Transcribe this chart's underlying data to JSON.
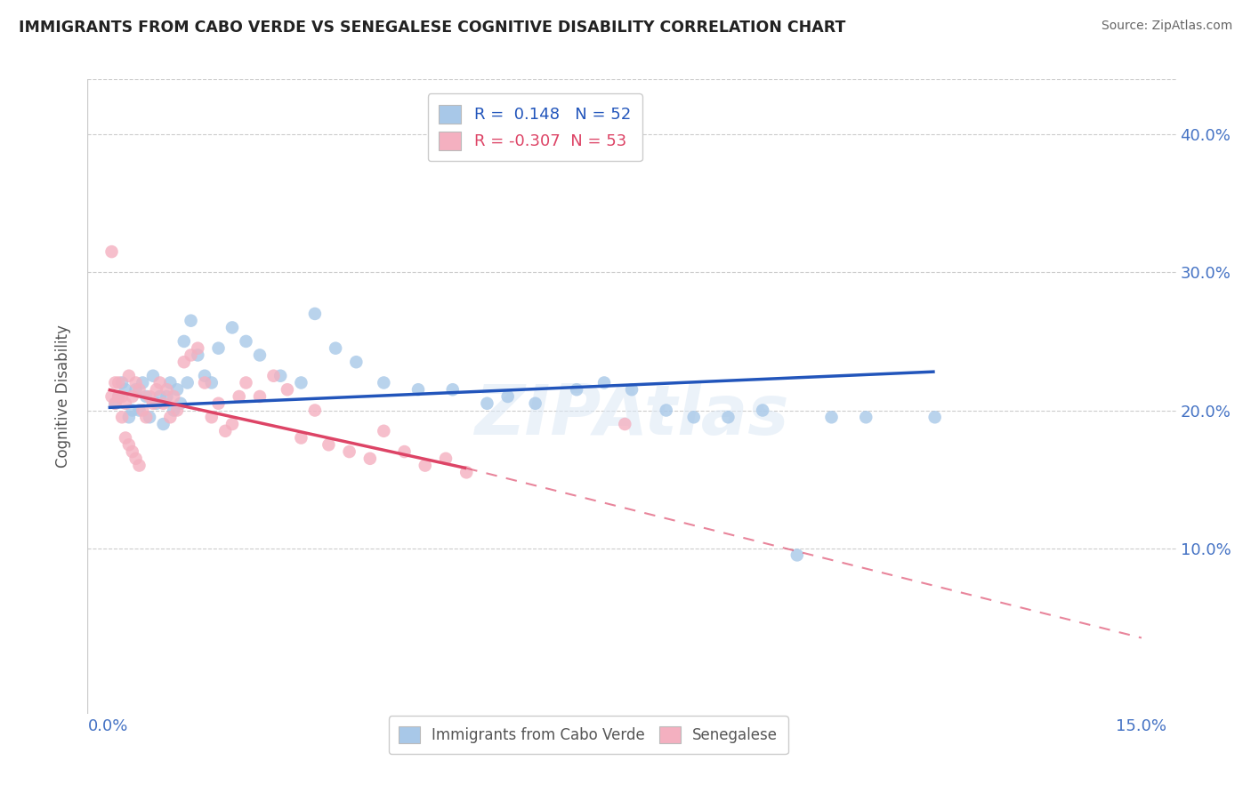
{
  "title": "IMMIGRANTS FROM CABO VERDE VS SENEGALESE COGNITIVE DISABILITY CORRELATION CHART",
  "source": "Source: ZipAtlas.com",
  "ylabel": "Cognitive Disability",
  "xlim": [
    -0.3,
    15.5
  ],
  "ylim": [
    -2.0,
    44.0
  ],
  "yticks": [
    10.0,
    20.0,
    30.0,
    40.0
  ],
  "ytick_labels": [
    "10.0%",
    "20.0%",
    "30.0%",
    "40.0%"
  ],
  "legend_label_blue": "Immigrants from Cabo Verde",
  "legend_label_pink": "Senegalese",
  "R_blue": 0.148,
  "N_blue": 52,
  "R_pink": -0.307,
  "N_pink": 53,
  "blue_color": "#a8c8e8",
  "pink_color": "#f4b0c0",
  "blue_line_color": "#2255bb",
  "pink_line_color": "#dd4466",
  "watermark": "ZIPAtlas",
  "cabo_verde_x": [
    0.1,
    0.15,
    0.2,
    0.25,
    0.3,
    0.35,
    0.4,
    0.45,
    0.5,
    0.55,
    0.6,
    0.65,
    0.7,
    0.75,
    0.8,
    0.85,
    0.9,
    0.95,
    1.0,
    1.05,
    1.1,
    1.15,
    1.2,
    1.3,
    1.4,
    1.5,
    1.6,
    1.8,
    2.0,
    2.2,
    2.5,
    2.8,
    3.0,
    3.3,
    3.6,
    4.0,
    4.5,
    5.0,
    5.5,
    5.8,
    6.2,
    6.8,
    7.2,
    7.6,
    8.1,
    8.5,
    9.0,
    9.5,
    10.0,
    10.5,
    11.0,
    12.0
  ],
  "cabo_verde_y": [
    20.5,
    21.0,
    22.0,
    21.5,
    19.5,
    20.0,
    21.5,
    20.0,
    22.0,
    21.0,
    19.5,
    22.5,
    20.5,
    21.0,
    19.0,
    21.0,
    22.0,
    20.0,
    21.5,
    20.5,
    25.0,
    22.0,
    26.5,
    24.0,
    22.5,
    22.0,
    24.5,
    26.0,
    25.0,
    24.0,
    22.5,
    22.0,
    27.0,
    24.5,
    23.5,
    22.0,
    21.5,
    21.5,
    20.5,
    21.0,
    20.5,
    21.5,
    22.0,
    21.5,
    20.0,
    19.5,
    19.5,
    20.0,
    9.5,
    19.5,
    19.5,
    19.5
  ],
  "senegalese_x": [
    0.05,
    0.1,
    0.15,
    0.2,
    0.25,
    0.3,
    0.35,
    0.4,
    0.45,
    0.5,
    0.55,
    0.6,
    0.65,
    0.7,
    0.75,
    0.8,
    0.85,
    0.9,
    0.95,
    1.0,
    1.1,
    1.2,
    1.3,
    1.4,
    1.5,
    1.6,
    1.7,
    1.8,
    1.9,
    2.0,
    2.2,
    2.4,
    2.6,
    2.8,
    3.0,
    3.2,
    3.5,
    3.8,
    4.0,
    4.3,
    4.6,
    4.9,
    5.2,
    0.05,
    0.1,
    0.15,
    0.2,
    0.25,
    0.3,
    0.35,
    0.4,
    0.45,
    7.5
  ],
  "senegalese_y": [
    21.0,
    20.5,
    22.0,
    21.0,
    20.5,
    22.5,
    21.0,
    22.0,
    21.5,
    20.0,
    19.5,
    21.0,
    20.5,
    21.5,
    22.0,
    20.5,
    21.5,
    19.5,
    21.0,
    20.0,
    23.5,
    24.0,
    24.5,
    22.0,
    19.5,
    20.5,
    18.5,
    19.0,
    21.0,
    22.0,
    21.0,
    22.5,
    21.5,
    18.0,
    20.0,
    17.5,
    17.0,
    16.5,
    18.5,
    17.0,
    16.0,
    16.5,
    15.5,
    31.5,
    22.0,
    21.0,
    19.5,
    18.0,
    17.5,
    17.0,
    16.5,
    16.0,
    19.0
  ],
  "blue_line_x0": 0.0,
  "blue_line_y0": 20.2,
  "blue_line_x1": 12.0,
  "blue_line_y1": 22.8,
  "pink_line_x0": 0.0,
  "pink_line_y0": 21.5,
  "pink_line_x1": 5.2,
  "pink_line_y1": 15.8,
  "pink_dash_x1": 15.0,
  "pink_dash_y1": 3.5
}
